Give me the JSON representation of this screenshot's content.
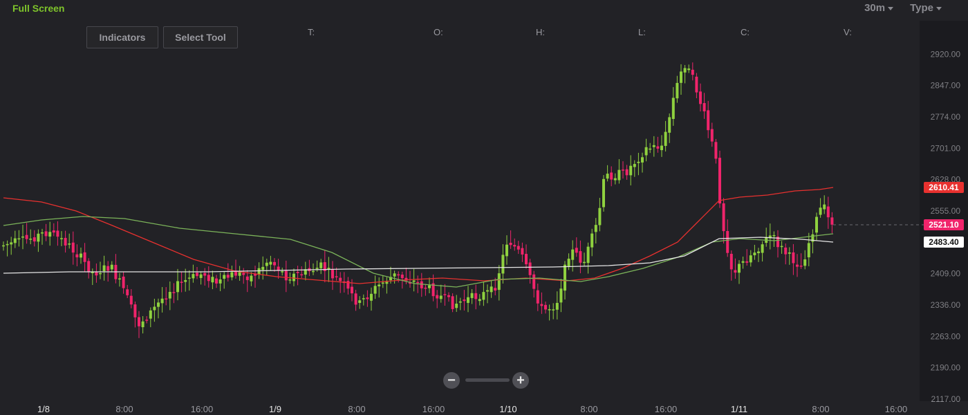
{
  "toolbar": {
    "full_screen": "Full Screen",
    "indicators": "Indicators",
    "select_tool": "Select Tool",
    "interval": "30m",
    "type": "Type"
  },
  "ohlc_labels": [
    "T:",
    "O:",
    "H:",
    "L:",
    "C:",
    "V:"
  ],
  "colors": {
    "up": "#8fd13f",
    "down": "#f0246b",
    "ma_red": "#e8312f",
    "ma_green": "#7cb45a",
    "ma_white": "#e6e6e6",
    "background": "#222226"
  },
  "chart_data": {
    "type": "candlestick",
    "y_ticks": [
      "2920.00",
      "2847.00",
      "2774.00",
      "2701.00",
      "2628.00",
      "2555.00",
      "2409.00",
      "2336.00",
      "2263.00",
      "2190.00",
      "2117.00"
    ],
    "x_ticks": [
      "1/8",
      "8:00",
      "16:00",
      "1/9",
      "8:00",
      "16:00",
      "1/10",
      "8:00",
      "16:00",
      "1/11",
      "8:00",
      "16:00"
    ],
    "ylim": [
      2117,
      2993
    ],
    "price_badges": [
      {
        "value": "2610.41",
        "color": "#e8312f",
        "text_color": "#ffffff"
      },
      {
        "value": "2521.10",
        "color": "#f0246b",
        "text_color": "#ffffff"
      },
      {
        "value": "2483.40",
        "color": "#ffffff",
        "text_color": "#111111"
      }
    ],
    "zoom": {
      "minus": "−",
      "plus": "+"
    }
  }
}
